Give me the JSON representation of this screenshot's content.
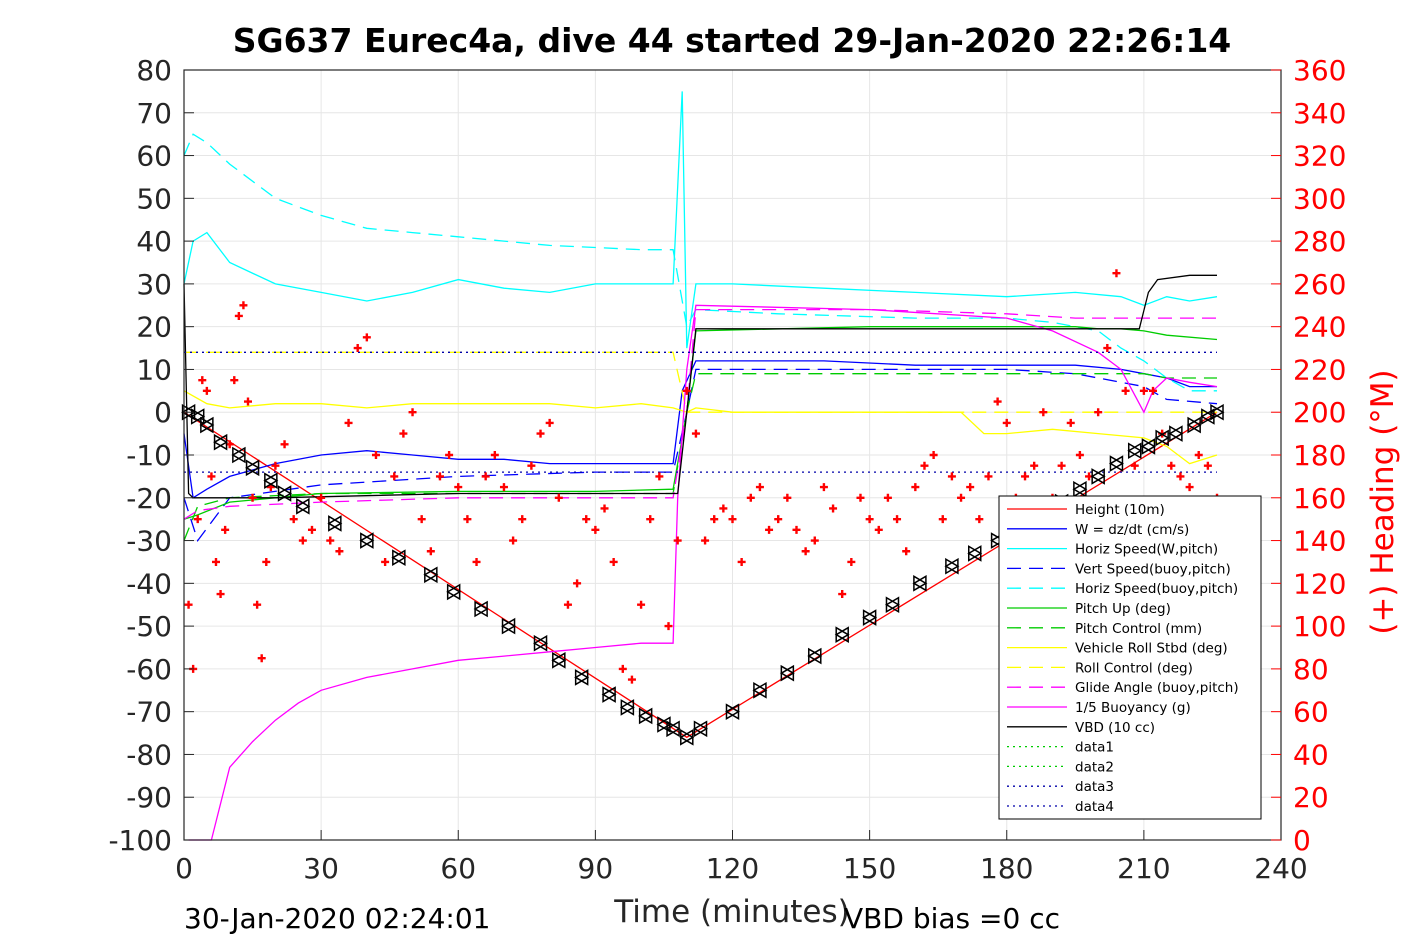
{
  "chart_data": {
    "type": "line",
    "title": "SG637 Eurec4a, dive 44 started 29-Jan-2020 22:26:14",
    "xlabel": "Time (minutes)",
    "ylabel_right": "(+) Heading (°M)",
    "xlim": [
      0,
      240
    ],
    "ylim_left": [
      -100,
      80
    ],
    "ylim_right": [
      0,
      360
    ],
    "x_ticks": [
      "0",
      "30",
      "60",
      "90",
      "120",
      "150",
      "180",
      "210",
      "240"
    ],
    "y_left_ticks": [
      "80",
      "70",
      "60",
      "50",
      "40",
      "30",
      "20",
      "10",
      "0",
      "-10",
      "-20",
      "-30",
      "-40",
      "-50",
      "-60",
      "-70",
      "-80",
      "-90",
      "-100"
    ],
    "y_right_ticks": [
      "360",
      "340",
      "320",
      "300",
      "280",
      "260",
      "240",
      "220",
      "200",
      "180",
      "160",
      "140",
      "120",
      "100",
      "80",
      "60",
      "40",
      "20",
      "0"
    ],
    "grid": true,
    "legend_position": "bottom-right",
    "footer_left": "30-Jan-2020 02:24:01",
    "footer_right": "VBD bias =0 cc",
    "series": [
      {
        "name": "Height (10m)",
        "color": "#ff0000",
        "style": "solid",
        "x": [
          0,
          110,
          226
        ],
        "y": [
          0,
          -76,
          0
        ]
      },
      {
        "name": "W = dz/dt (cm/s)",
        "color": "#0000ff",
        "style": "solid",
        "x": [
          0,
          2,
          5,
          10,
          20,
          30,
          40,
          50,
          60,
          70,
          80,
          90,
          100,
          107,
          109,
          112,
          120,
          140,
          160,
          180,
          195,
          205,
          210,
          215,
          220,
          226
        ],
        "y": [
          -5,
          -20,
          -18,
          -15,
          -12,
          -10,
          -9,
          -10,
          -11,
          -11,
          -12,
          -12,
          -12,
          -12,
          5,
          12,
          12,
          12,
          11,
          11,
          11,
          10,
          9,
          8,
          6,
          6
        ]
      },
      {
        "name": "Horiz Speed(W,pitch)",
        "color": "#00ffff",
        "style": "solid",
        "x": [
          0,
          2,
          5,
          10,
          20,
          30,
          40,
          50,
          60,
          70,
          80,
          90,
          100,
          107,
          109,
          110,
          112,
          120,
          140,
          160,
          180,
          195,
          205,
          210,
          215,
          220,
          226
        ],
        "y": [
          30,
          40,
          42,
          35,
          30,
          28,
          26,
          28,
          31,
          29,
          28,
          30,
          30,
          30,
          75,
          15,
          30,
          30,
          29,
          28,
          27,
          28,
          27,
          25,
          27,
          26,
          27
        ]
      },
      {
        "name": "Vert Speed(buoy,pitch)",
        "color": "#0000ff",
        "style": "dashed",
        "x": [
          0,
          3,
          10,
          30,
          60,
          90,
          107,
          110,
          112,
          150,
          180,
          195,
          210,
          215,
          226
        ],
        "y": [
          -20,
          -30,
          -20,
          -17,
          -15,
          -14,
          -14,
          0,
          10,
          10,
          10,
          9,
          6,
          3,
          2
        ]
      },
      {
        "name": "Horiz Speed(buoy,pitch)",
        "color": "#00ffff",
        "style": "dashed",
        "x": [
          0,
          2,
          5,
          10,
          20,
          30,
          40,
          50,
          60,
          70,
          80,
          90,
          100,
          105,
          107,
          110,
          112,
          130,
          160,
          180,
          190,
          200,
          205,
          210,
          215,
          220,
          226
        ],
        "y": [
          60,
          65,
          63,
          58,
          50,
          46,
          43,
          42,
          41,
          40,
          39,
          38.5,
          38,
          38,
          38,
          20,
          24,
          23,
          22,
          22,
          21,
          19,
          15,
          12,
          8,
          5,
          5
        ]
      },
      {
        "name": "Pitch Up (deg)",
        "color": "#00cc00",
        "style": "solid",
        "x": [
          0,
          3,
          10,
          30,
          60,
          90,
          107,
          110,
          112,
          150,
          180,
          195,
          200,
          205,
          210,
          215,
          226
        ],
        "y": [
          -25,
          -24,
          -21,
          -19,
          -18.5,
          -18.5,
          -18,
          0,
          19,
          20,
          20,
          20,
          19.5,
          19.5,
          19,
          18,
          17
        ]
      },
      {
        "name": "Pitch Control (mm)",
        "color": "#00cc00",
        "style": "dashed",
        "x": [
          0,
          3,
          10,
          30,
          60,
          90,
          107,
          110,
          112,
          150,
          180,
          195,
          205,
          210,
          215,
          226
        ],
        "y": [
          -30,
          -22,
          -20,
          -19,
          -19,
          -19,
          -19,
          0,
          9,
          9,
          9,
          9,
          9,
          9,
          8,
          8
        ]
      },
      {
        "name": "Vehicle Roll Stbd (deg)",
        "color": "#ffff00",
        "style": "solid",
        "x": [
          0,
          5,
          10,
          20,
          30,
          40,
          50,
          60,
          70,
          80,
          90,
          100,
          107,
          110,
          112,
          120,
          140,
          160,
          170,
          175,
          180,
          190,
          200,
          210,
          215,
          220,
          226
        ],
        "y": [
          5,
          2,
          1,
          2,
          2,
          1,
          2,
          2,
          2,
          2,
          1,
          2,
          1,
          0,
          1,
          0,
          0,
          0,
          0,
          -5,
          -5,
          -4,
          -5,
          -6,
          -8,
          -12,
          -10
        ]
      },
      {
        "name": "Roll Control (deg)",
        "color": "#ffff00",
        "style": "dashed",
        "x": [
          0,
          10,
          30,
          60,
          90,
          107,
          110,
          112,
          150,
          180,
          210,
          226
        ],
        "y": [
          14,
          14,
          14,
          14,
          14,
          14,
          0,
          0,
          0,
          0,
          0,
          0
        ]
      },
      {
        "name": "Glide Angle (buoy,pitch)",
        "color": "#ff00ff",
        "style": "dashed",
        "x": [
          0,
          3,
          10,
          30,
          60,
          90,
          107,
          110,
          112,
          150,
          180,
          195,
          210,
          215,
          226
        ],
        "y": [
          -25,
          -23,
          -22,
          -21,
          -20,
          -20,
          -20,
          0,
          24,
          24,
          23,
          22,
          22,
          22,
          22
        ]
      },
      {
        "name": "1/5 Buoyancy (g)",
        "color": "#ff00ff",
        "style": "solid",
        "x": [
          1,
          4,
          6,
          10,
          15,
          20,
          25,
          30,
          40,
          50,
          60,
          70,
          80,
          90,
          100,
          107,
          108,
          110,
          112,
          150,
          180,
          190,
          200,
          205,
          210,
          212,
          215,
          220,
          226
        ],
        "y": [
          -100,
          -100,
          -100,
          -83,
          -77,
          -72,
          -68,
          -65,
          -62,
          -60,
          -58,
          -57,
          -56,
          -55,
          -54,
          -54,
          -20,
          10,
          25,
          24,
          22,
          19,
          14,
          10,
          0,
          5,
          8,
          7,
          6
        ]
      },
      {
        "name": "VBD (10 cc)",
        "color": "#000000",
        "style": "solid",
        "x": [
          0,
          1,
          2,
          4,
          20,
          60,
          107,
          108,
          110,
          112,
          150,
          190,
          205,
          209,
          211,
          213,
          220,
          226
        ],
        "y": [
          30,
          -19,
          -20,
          -20,
          -20,
          -19,
          -19,
          -19,
          0,
          19.5,
          19.5,
          19.5,
          19.5,
          19.5,
          28,
          31,
          32,
          32
        ]
      },
      {
        "name": "data1",
        "color": "#00cc00",
        "style": "dotted",
        "x": [],
        "y": []
      },
      {
        "name": "data2",
        "color": "#00cc00",
        "style": "dotted",
        "x": [],
        "y": []
      },
      {
        "name": "data3",
        "color": "#0000aa",
        "style": "dotted",
        "x": [
          0,
          226
        ],
        "y": [
          14,
          14
        ]
      },
      {
        "name": "data4",
        "color": "#0000aa",
        "style": "dotted",
        "x": [
          0,
          226
        ],
        "y": [
          -14,
          -14
        ]
      }
    ],
    "heading_series": {
      "axis": "right",
      "color": "#ff0000",
      "marker": "+",
      "x": [
        1,
        2,
        3,
        4,
        5,
        6,
        7,
        8,
        9,
        10,
        11,
        12,
        13,
        14,
        15,
        16,
        17,
        18,
        19,
        20,
        22,
        24,
        26,
        28,
        30,
        32,
        34,
        36,
        38,
        40,
        42,
        44,
        46,
        48,
        50,
        52,
        54,
        56,
        58,
        60,
        62,
        64,
        66,
        68,
        70,
        72,
        74,
        76,
        78,
        80,
        82,
        84,
        86,
        88,
        90,
        92,
        94,
        96,
        98,
        100,
        102,
        104,
        106,
        108,
        110,
        112,
        114,
        116,
        118,
        120,
        122,
        124,
        126,
        128,
        130,
        132,
        134,
        136,
        138,
        140,
        142,
        144,
        146,
        148,
        150,
        152,
        154,
        156,
        158,
        160,
        162,
        164,
        166,
        168,
        170,
        172,
        174,
        176,
        178,
        180,
        182,
        184,
        186,
        188,
        190,
        192,
        194,
        196,
        198,
        200,
        202,
        204,
        206,
        208,
        210,
        212,
        214,
        216,
        218,
        220,
        222,
        224,
        226
      ],
      "y": [
        110,
        80,
        150,
        215,
        210,
        170,
        130,
        115,
        145,
        185,
        215,
        245,
        250,
        205,
        160,
        110,
        85,
        130,
        165,
        175,
        185,
        150,
        140,
        145,
        160,
        140,
        135,
        195,
        230,
        235,
        180,
        130,
        170,
        190,
        200,
        150,
        135,
        170,
        180,
        165,
        150,
        130,
        170,
        180,
        165,
        140,
        150,
        175,
        190,
        195,
        160,
        110,
        120,
        150,
        145,
        155,
        130,
        80,
        75,
        110,
        150,
        170,
        100,
        140,
        210,
        190,
        140,
        150,
        155,
        150,
        130,
        160,
        165,
        145,
        150,
        160,
        145,
        135,
        140,
        165,
        155,
        115,
        130,
        160,
        150,
        145,
        160,
        150,
        135,
        165,
        175,
        180,
        150,
        170,
        160,
        165,
        150,
        170,
        205,
        195,
        160,
        170,
        175,
        200,
        160,
        175,
        195,
        180,
        170,
        200,
        230,
        265,
        210,
        175,
        210,
        210,
        190,
        175,
        170,
        165,
        180,
        175,
        160
      ]
    },
    "depth_markers": {
      "axis": "left",
      "color": "#000000",
      "markers": [
        "triangle-left",
        "triangle-right",
        "x"
      ],
      "x": [
        1,
        3,
        5,
        8,
        12,
        15,
        19,
        22,
        26,
        33,
        40,
        47,
        54,
        59,
        65,
        71,
        78,
        82,
        87,
        93,
        97,
        101,
        105,
        107,
        110,
        113,
        120,
        126,
        132,
        138,
        144,
        150,
        155,
        161,
        168,
        173,
        178,
        183,
        188,
        192,
        196,
        200,
        204,
        208,
        211,
        214,
        217,
        221,
        224,
        226
      ],
      "y": [
        0,
        -1,
        -3,
        -7,
        -10,
        -13,
        -16,
        -19,
        -22,
        -26,
        -30,
        -34,
        -38,
        -42,
        -46,
        -50,
        -54,
        -58,
        -62,
        -66,
        -69,
        -71,
        -73,
        -74,
        -76,
        -74,
        -70,
        -65,
        -61,
        -57,
        -52,
        -48,
        -45,
        -40,
        -36,
        -33,
        -30,
        -27,
        -24,
        -21,
        -18,
        -15,
        -12,
        -9,
        -8,
        -6,
        -5,
        -3,
        -1,
        0
      ]
    }
  }
}
